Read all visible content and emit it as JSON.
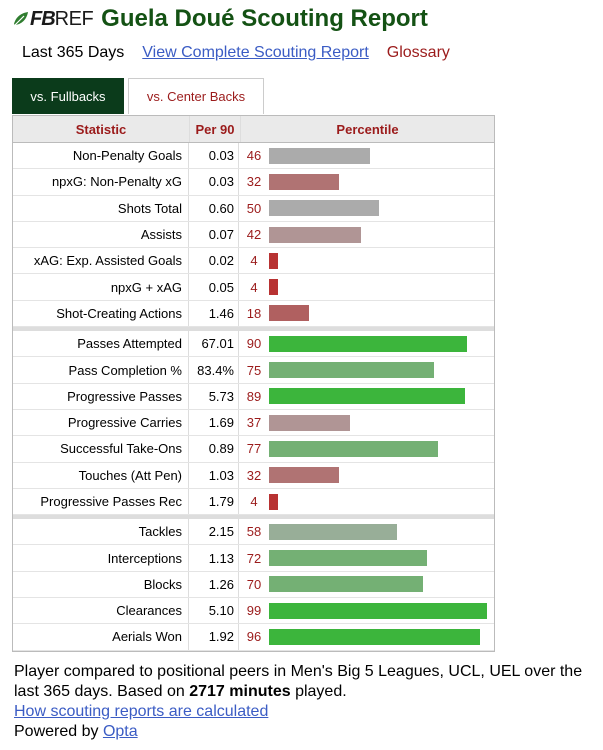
{
  "header": {
    "logo_fb": "FB",
    "logo_ref": "REF",
    "title": "Guela Doué Scouting Report"
  },
  "subnav": {
    "period": "Last 365 Days",
    "complete_link": "View Complete Scouting Report",
    "glossary": "Glossary"
  },
  "tabs": [
    {
      "label": "vs. Fullbacks",
      "active": true
    },
    {
      "label": "vs. Center Backs",
      "active": false
    }
  ],
  "table": {
    "headers": {
      "statistic": "Statistic",
      "per90": "Per 90",
      "percentile": "Percentile"
    },
    "groups": [
      [
        {
          "stat": "Non-Penalty Goals",
          "per90": "0.03",
          "pct": 46
        },
        {
          "stat": "npxG: Non-Penalty xG",
          "per90": "0.03",
          "pct": 32
        },
        {
          "stat": "Shots Total",
          "per90": "0.60",
          "pct": 50
        },
        {
          "stat": "Assists",
          "per90": "0.07",
          "pct": 42
        },
        {
          "stat": "xAG: Exp. Assisted Goals",
          "per90": "0.02",
          "pct": 4
        },
        {
          "stat": "npxG + xAG",
          "per90": "0.05",
          "pct": 4
        },
        {
          "stat": "Shot-Creating Actions",
          "per90": "1.46",
          "pct": 18
        }
      ],
      [
        {
          "stat": "Passes Attempted",
          "per90": "67.01",
          "pct": 90
        },
        {
          "stat": "Pass Completion %",
          "per90": "83.4%",
          "pct": 75
        },
        {
          "stat": "Progressive Passes",
          "per90": "5.73",
          "pct": 89
        },
        {
          "stat": "Progressive Carries",
          "per90": "1.69",
          "pct": 37
        },
        {
          "stat": "Successful Take-Ons",
          "per90": "0.89",
          "pct": 77
        },
        {
          "stat": "Touches (Att Pen)",
          "per90": "1.03",
          "pct": 32
        },
        {
          "stat": "Progressive Passes Rec",
          "per90": "1.79",
          "pct": 4
        }
      ],
      [
        {
          "stat": "Tackles",
          "per90": "2.15",
          "pct": 58
        },
        {
          "stat": "Interceptions",
          "per90": "1.13",
          "pct": 72
        },
        {
          "stat": "Blocks",
          "per90": "1.26",
          "pct": 70
        },
        {
          "stat": "Clearances",
          "per90": "5.10",
          "pct": 99
        },
        {
          "stat": "Aerials Won",
          "per90": "1.92",
          "pct": 96
        }
      ]
    ]
  },
  "footer": {
    "line1_a": "Player compared to positional peers in Men's Big 5 Leagues, UCL, UEL over the last 365 days. Based on ",
    "minutes": "2717 minutes",
    "line1_b": " played.",
    "how_link": "How scouting reports are calculated",
    "powered_by": "Powered by ",
    "opta": "Opta"
  },
  "colors": {
    "title": "#145214",
    "link": "#3b5cc4",
    "accent_red": "#9b1b1b",
    "tab_active": "#0b3b1b"
  }
}
